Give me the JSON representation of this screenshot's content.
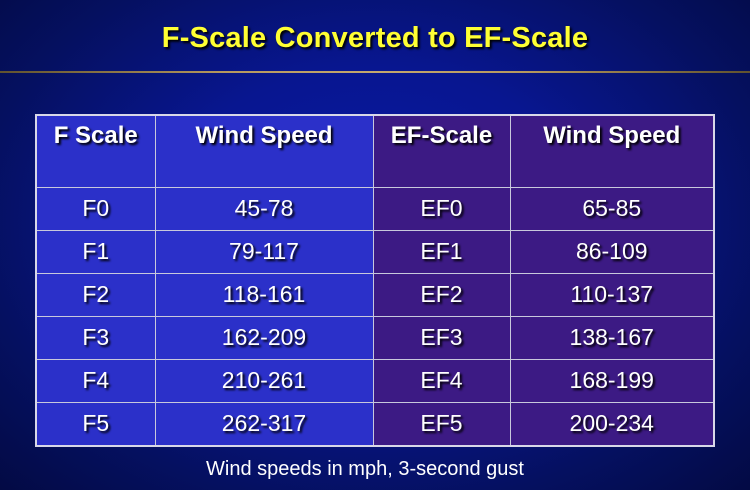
{
  "slide": {
    "title": "F-Scale Converted to EF-Scale",
    "footnote": "Wind speeds in mph, 3-second gust"
  },
  "table": {
    "headers": [
      "F Scale",
      "Wind Speed",
      "EF-Scale",
      "Wind Speed"
    ],
    "rows": [
      [
        "F0",
        "45-78",
        "EF0",
        "65-85"
      ],
      [
        "F1",
        "79-117",
        "EF1",
        "86-109"
      ],
      [
        "F2",
        "118-161",
        "EF2",
        "110-137"
      ],
      [
        "F3",
        "162-209",
        "EF3",
        "138-167"
      ],
      [
        "F4",
        "210-261",
        "EF4",
        "168-199"
      ],
      [
        "F5",
        "262-317",
        "EF5",
        "200-234"
      ]
    ]
  },
  "colors": {
    "title": "#ffff33",
    "background": "#081690",
    "f_columns": "#2b30c9",
    "ef_columns": "#3c1a84",
    "text": "#ffffff"
  }
}
